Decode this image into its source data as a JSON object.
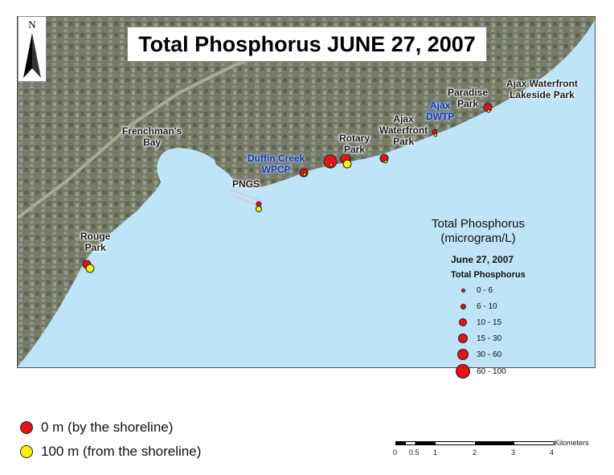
{
  "title": "Total Phosphorus JUNE 27, 2007",
  "north_letter": "N",
  "places": {
    "frenchmans_bay": "Frenchman's\nBay",
    "pngs": "PNGS",
    "duffin_creek": "Duffin Creek\nWPCP",
    "rotary_park": "Rotary\nPark",
    "ajax_waterfront_park": "Ajax\nWaterfront\nPark",
    "ajax_dwtp": "Ajax\nDWTP",
    "paradise_park": "Paradise\nPark",
    "ajax_lakeside_park": "Ajax Waterfront\nLakeside Park",
    "rouge_park": "Rouge\nPark"
  },
  "legend": {
    "title": "Total Phosphorus\n(microgram/L)",
    "date": "June 27, 2007",
    "subtitle": "Total Phosphorus",
    "classes": [
      "0 - 6",
      "6 - 10",
      "10 - 15",
      "15 - 30",
      "30 - 60",
      "60 - 100"
    ]
  },
  "key": {
    "shoreline": "0 m (by the shoreline)",
    "offshore": "100 m (from the shoreline)"
  },
  "scale": {
    "unit": "Kilometers",
    "ticks": [
      "0",
      "0.5",
      "1",
      "2",
      "3",
      "4"
    ]
  },
  "colors": {
    "lake": "#bfe3f7",
    "land": "#6e7560",
    "shoreline_marker": "#e8101a",
    "offshore_marker": "#f5f50a"
  }
}
